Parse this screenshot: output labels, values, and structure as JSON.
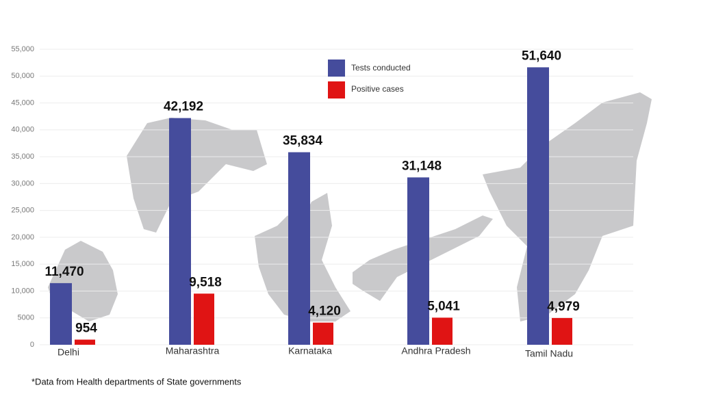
{
  "chart_data": {
    "type": "bar",
    "categories": [
      "Delhi",
      "Maharashtra",
      "Karnataka",
      "Andhra Pradesh",
      "Tamil Nadu"
    ],
    "series": [
      {
        "name": "Tests conducted",
        "color": "#454c9c",
        "values": [
          11470,
          42192,
          35834,
          31148,
          51640
        ],
        "value_labels": [
          "11,470",
          "42,192",
          "35,834",
          "31,148",
          "51,640"
        ]
      },
      {
        "name": "Positive cases",
        "color": "#e01414",
        "values": [
          954,
          9518,
          4120,
          5041,
          4979
        ],
        "value_labels": [
          "954",
          "9,518",
          "4,120",
          "5,041",
          "4,979"
        ]
      }
    ],
    "ylim": [
      0,
      55000
    ],
    "yticks": [
      0,
      5000,
      {
        "value": 10000,
        "label": "10,000"
      },
      {
        "value": 15000,
        "label": "15,000"
      },
      {
        "value": 20000,
        "label": "20,000"
      },
      {
        "value": 25000,
        "label": "25,000"
      },
      {
        "value": 30000,
        "label": "30,000"
      },
      {
        "value": 35000,
        "label": "35,000"
      },
      {
        "value": 40000,
        "label": "40,000"
      },
      {
        "value": 45000,
        "label": "45,000"
      },
      {
        "value": 50000,
        "label": "50,000"
      },
      {
        "value": 55000,
        "label": "55,000"
      }
    ],
    "grid": true,
    "footnote": "*Data from Health departments of State governments"
  }
}
